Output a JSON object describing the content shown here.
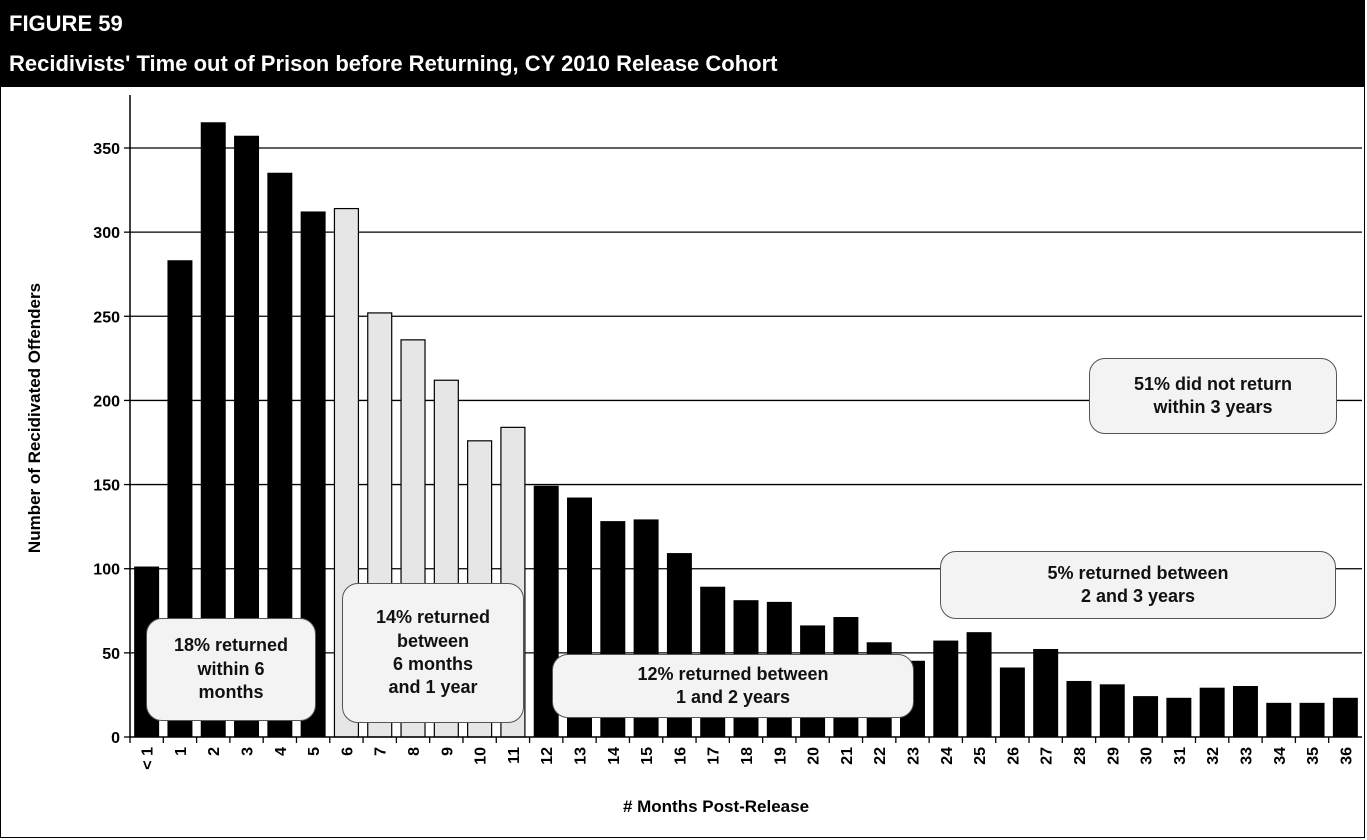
{
  "figure": {
    "number": "FIGURE 59",
    "title": "Recidivists' Time out of Prison before Returning, CY 2010 Release Cohort"
  },
  "chart_data": {
    "type": "bar",
    "xlabel": "# Months Post-Release",
    "ylabel": "Number of Recidivated Offenders",
    "ylim": [
      0,
      370
    ],
    "yticks": [
      0,
      50,
      100,
      150,
      200,
      250,
      300,
      350
    ],
    "grid": true,
    "categories": [
      "< 1",
      "1",
      "2",
      "3",
      "4",
      "5",
      "6",
      "7",
      "8",
      "9",
      "10",
      "11",
      "12",
      "13",
      "14",
      "15",
      "16",
      "17",
      "18",
      "19",
      "20",
      "21",
      "22",
      "23",
      "24",
      "25",
      "26",
      "27",
      "28",
      "29",
      "30",
      "31",
      "32",
      "33",
      "34",
      "35",
      "36"
    ],
    "values": [
      101,
      283,
      365,
      357,
      335,
      312,
      314,
      252,
      236,
      212,
      176,
      184,
      149,
      142,
      128,
      129,
      109,
      89,
      81,
      80,
      66,
      71,
      56,
      45,
      57,
      62,
      41,
      52,
      33,
      31,
      24,
      23,
      29,
      30,
      20,
      20,
      23
    ],
    "groups": [
      {
        "label": "18% returned within 6 months",
        "range": [
          0,
          5
        ],
        "color": "#000000"
      },
      {
        "label": "14% returned between 6 months and 1 year",
        "range": [
          6,
          11
        ],
        "color": "#e6e6e6"
      },
      {
        "label": "12% returned between 1 and 2 years",
        "range": [
          12,
          23
        ],
        "color": "#000000"
      },
      {
        "label": "5% returned between 2 and 3 years",
        "range": [
          24,
          36
        ],
        "color": "#000000"
      }
    ],
    "annotations": [
      {
        "text": "18% returned\nwithin 6\nmonths"
      },
      {
        "text": "14% returned\nbetween\n6 months\nand 1 year"
      },
      {
        "text": "12% returned between\n1 and 2 years"
      },
      {
        "text": "5% returned between\n2 and 3 years"
      },
      {
        "text": "51% did not return\nwithin 3 years"
      }
    ]
  }
}
